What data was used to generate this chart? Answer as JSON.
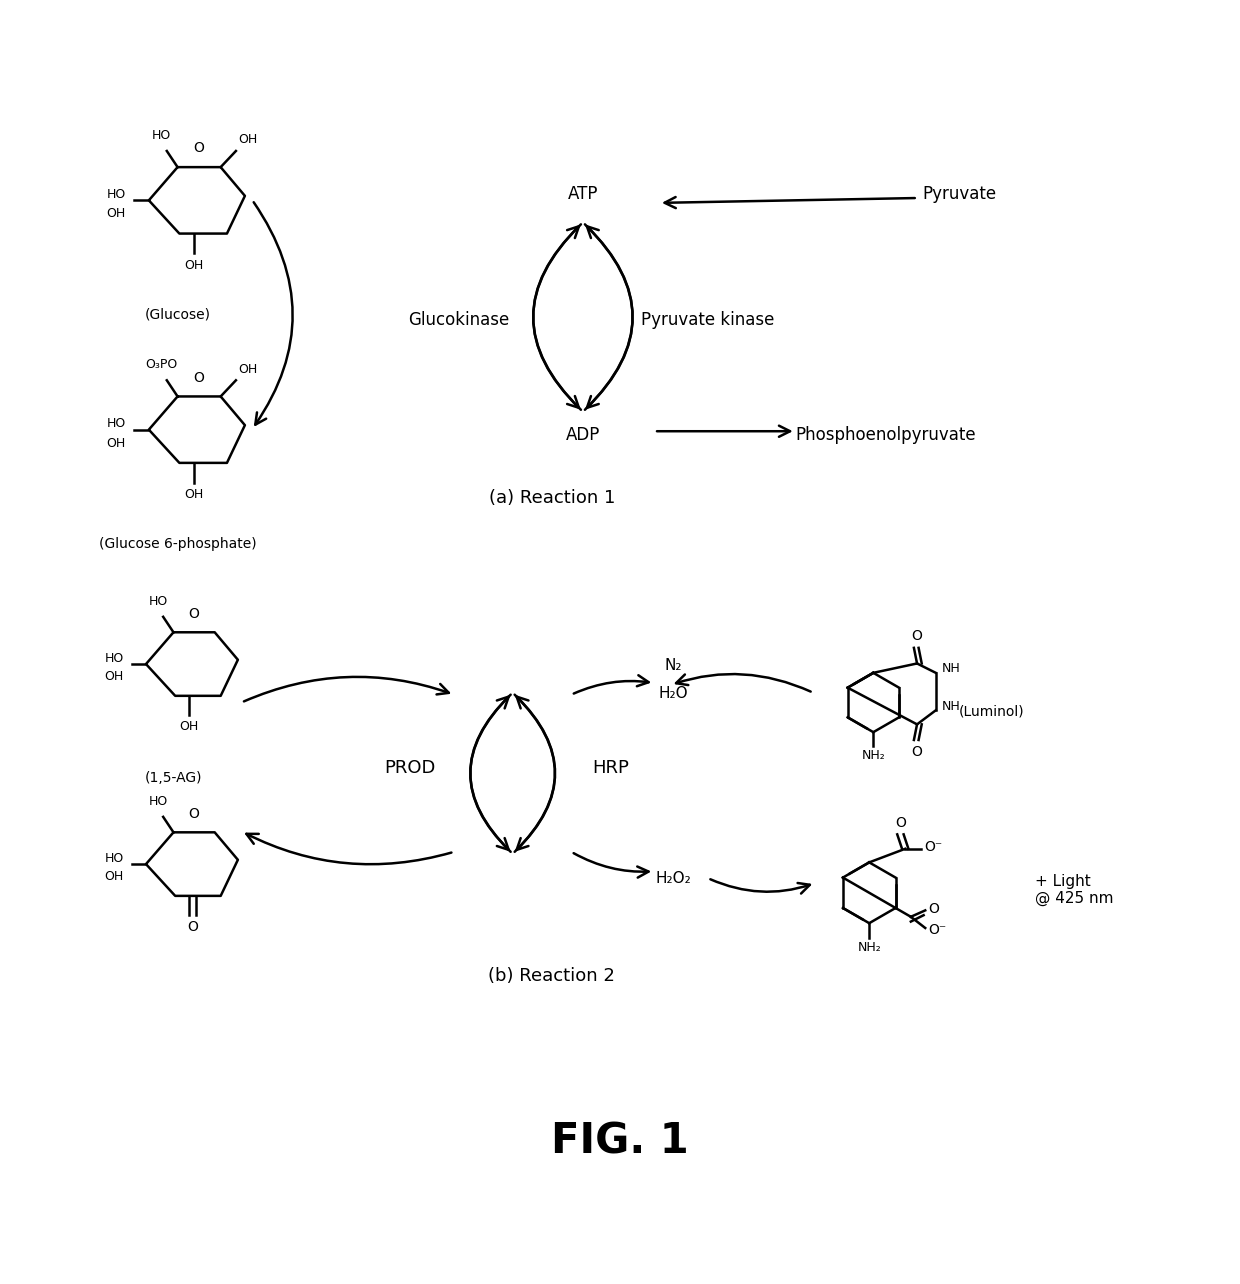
{
  "title": "FIG. 1",
  "reaction1_label": "(a) Reaction 1",
  "reaction2_label": "(b) Reaction 2",
  "bg_color": "#ffffff",
  "text_color": "#000000",
  "fig_width": 12.4,
  "fig_height": 12.84,
  "glucose_label": "(Glucose)",
  "g6p_label": "(Glucose 6-phosphate)",
  "ag_label": "(1,5-AG)",
  "glucokinase_label": "Glucokinase",
  "pyruvate_kinase_label": "Pyruvate kinase",
  "atp_label": "ATP",
  "adp_label": "ADP",
  "pyruvate_label": "Pyruvate",
  "pep_label": "Phosphoenolpyruvate",
  "prod_label": "PROD",
  "hrp_label": "HRP",
  "luminol_label": "(Luminol)",
  "n2_label": "N₂",
  "h2o_label": "H₂O",
  "h2o2_label": "H₂O₂",
  "light_label": "+ Light\n@ 425 nm"
}
